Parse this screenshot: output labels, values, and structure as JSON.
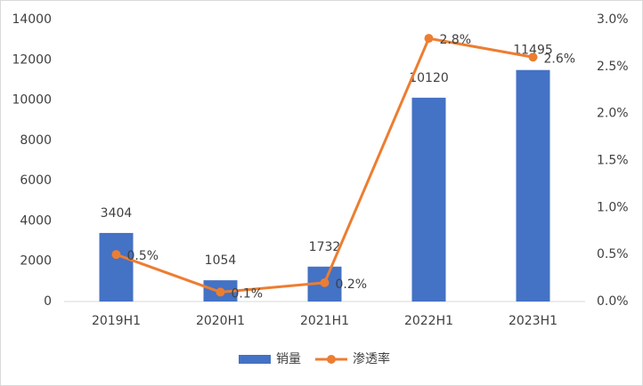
{
  "chart_data": {
    "type": "combo",
    "categories": [
      "2019H1",
      "2020H1",
      "2021H1",
      "2022H1",
      "2023H1"
    ],
    "series": [
      {
        "name": "销量",
        "type": "bar",
        "color": "#4472c4",
        "values": [
          3404,
          1054,
          1732,
          10120,
          11495
        ]
      },
      {
        "name": "渗透率",
        "type": "line",
        "axis": "y2",
        "color": "#ed7d31",
        "values": [
          0.5,
          0.1,
          0.2,
          2.8,
          2.6
        ],
        "value_labels": [
          "0.5%",
          "0.1%",
          "0.2%",
          "2.8%",
          "2.6%"
        ]
      }
    ],
    "ylim": [
      0,
      14000
    ],
    "yticks": [
      0,
      2000,
      4000,
      6000,
      8000,
      10000,
      12000,
      14000
    ],
    "y2lim": [
      0,
      3
    ],
    "y2ticks": [
      {
        "value": 0,
        "label": "0.0%"
      },
      {
        "value": 0.5,
        "label": "0.5%"
      },
      {
        "value": 1,
        "label": "1.0%"
      },
      {
        "value": 1.5,
        "label": "1.5%"
      },
      {
        "value": 2,
        "label": "2.0%"
      },
      {
        "value": 2.5,
        "label": "2.5%"
      },
      {
        "value": 3,
        "label": "3.0%"
      }
    ],
    "legend": "bottom"
  }
}
